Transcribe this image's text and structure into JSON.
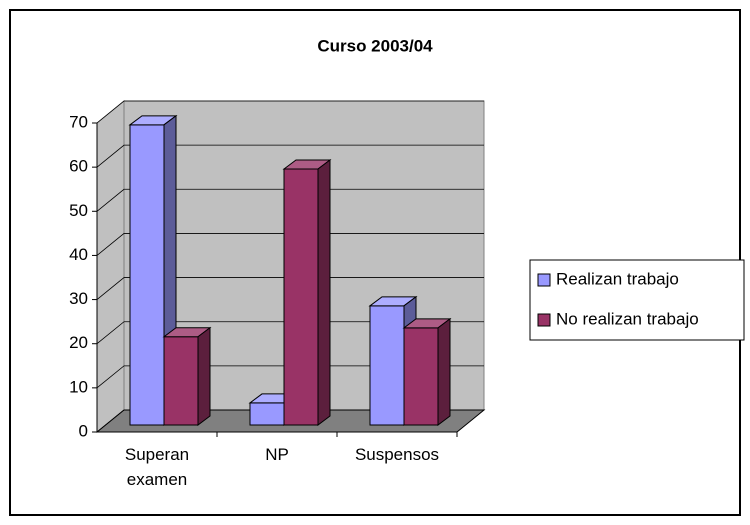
{
  "chart_data": {
    "type": "bar3d",
    "title": "Curso 2003/04",
    "categories": [
      "Superan examen",
      "NP",
      "Suspensos"
    ],
    "series": [
      {
        "name": "Realizan trabajo",
        "color": "#9999ff",
        "values": [
          68,
          5,
          27
        ]
      },
      {
        "name": "No realizan trabajo",
        "color": "#993366",
        "values": [
          20,
          58,
          22
        ]
      }
    ],
    "ylim": [
      0,
      70
    ],
    "yticks": [
      0,
      10,
      20,
      30,
      40,
      50,
      60,
      70
    ],
    "grid": true,
    "legend": "right"
  }
}
